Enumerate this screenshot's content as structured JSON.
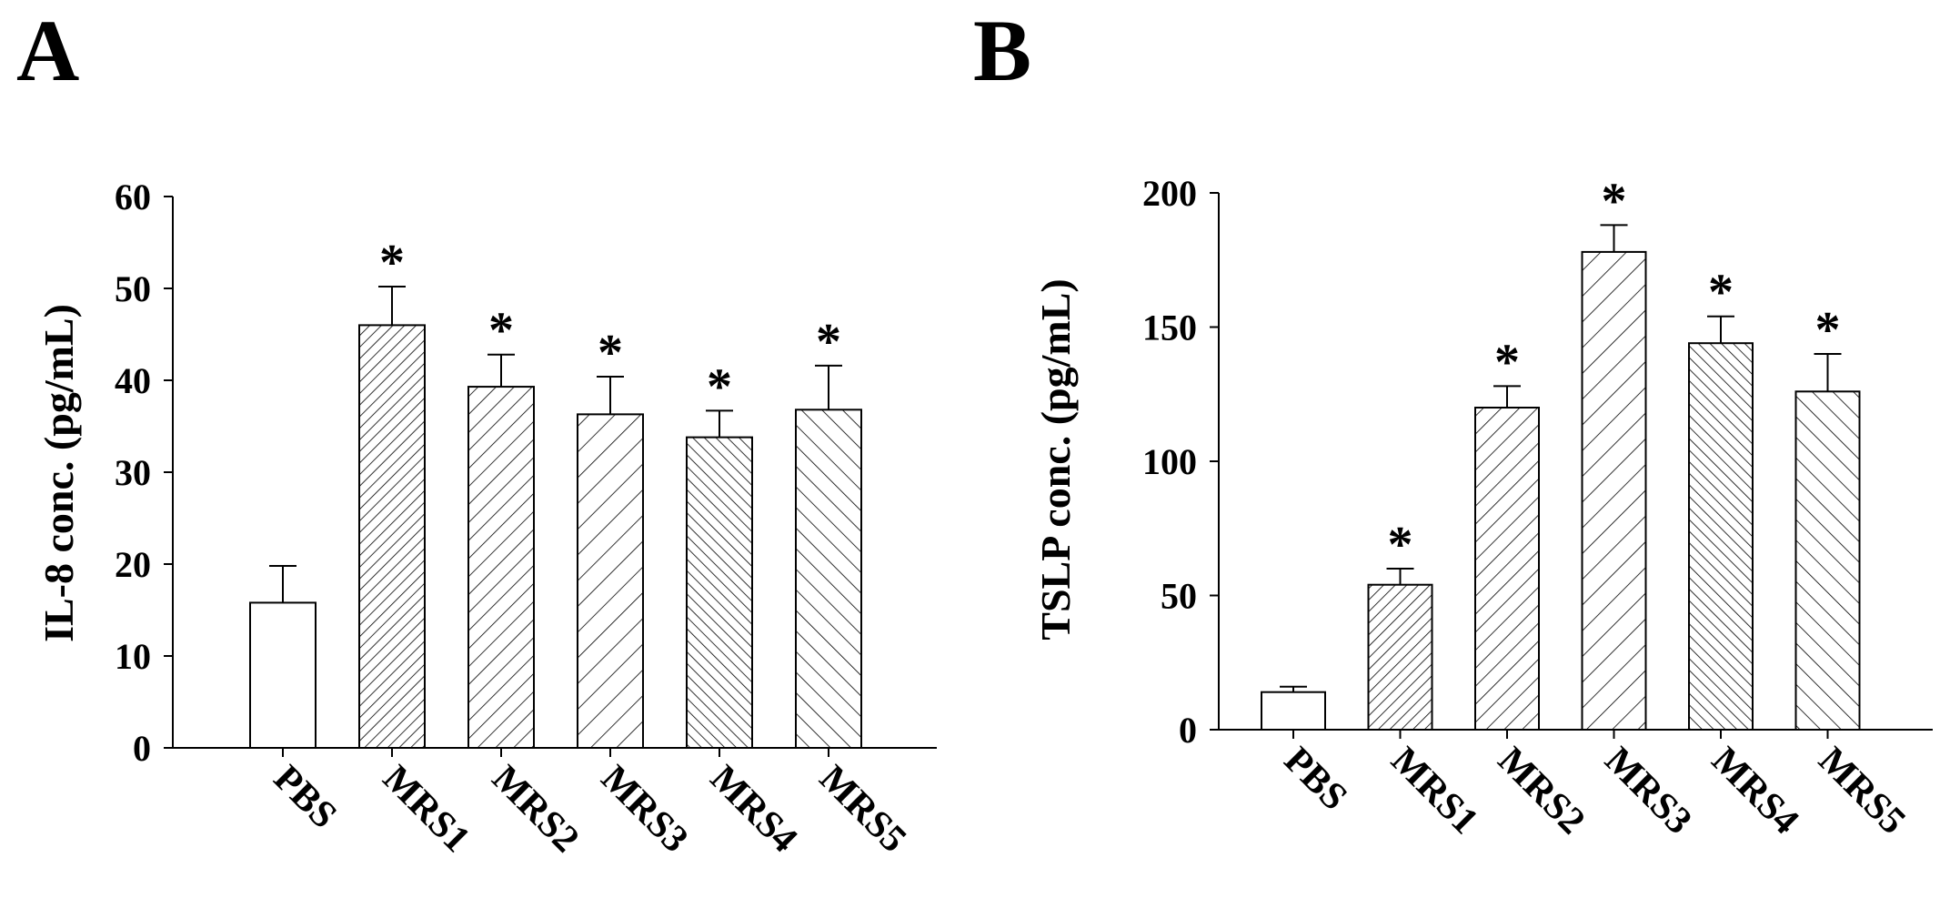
{
  "chart_data": [
    {
      "type": "bar",
      "panel": "A",
      "categories": [
        "PBS",
        "MRS1",
        "MRS2",
        "MRS3",
        "MRS4",
        "MRS5"
      ],
      "values": [
        15.8,
        46.0,
        39.3,
        36.3,
        33.8,
        36.8
      ],
      "errors": [
        4.0,
        4.2,
        3.5,
        4.1,
        2.9,
        4.8
      ],
      "significance": [
        "",
        "*",
        "*",
        "*",
        "*",
        "*"
      ],
      "patterns": [
        "none",
        "diag-fwd-dense",
        "diag-fwd",
        "diag-fwd-wide",
        "diag-back-dense",
        "diag-back"
      ],
      "title": "",
      "xlabel": "",
      "ylabel": "IL-8 conc. (pg/mL)",
      "ylim": [
        0,
        60
      ],
      "yticks": [
        0,
        10,
        20,
        30,
        40,
        50,
        60
      ],
      "grid": false
    },
    {
      "type": "bar",
      "panel": "B",
      "categories": [
        "PBS",
        "MRS1",
        "MRS2",
        "MRS3",
        "MRS4",
        "MRS5"
      ],
      "values": [
        14,
        54,
        120,
        178,
        144,
        126
      ],
      "errors": [
        2,
        6,
        8,
        10,
        10,
        14
      ],
      "significance": [
        "",
        "*",
        "*",
        "*",
        "*",
        "*"
      ],
      "patterns": [
        "none",
        "diag-fwd-dense",
        "diag-fwd",
        "diag-fwd-wide",
        "diag-back-dense",
        "diag-back"
      ],
      "title": "",
      "xlabel": "",
      "ylabel": "TSLP conc. (pg/mL)",
      "ylim": [
        0,
        200
      ],
      "yticks": [
        0,
        50,
        100,
        150,
        200
      ],
      "grid": false
    }
  ]
}
